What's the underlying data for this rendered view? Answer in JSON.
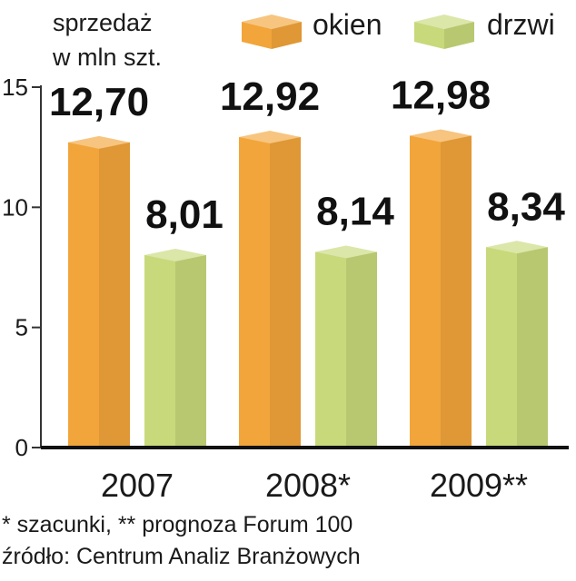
{
  "chart_data": {
    "type": "bar",
    "title": "",
    "ylabel_lines": [
      "sprzedaż",
      "w mln szt."
    ],
    "categories": [
      "2007",
      "2008*",
      "2009**"
    ],
    "series": [
      {
        "name": "okien",
        "values": [
          12.7,
          12.92,
          12.98
        ],
        "value_labels": [
          "12,70",
          "12,92",
          "12,98"
        ],
        "color": "#f2a53a"
      },
      {
        "name": "drzwi",
        "values": [
          8.01,
          8.14,
          8.34
        ],
        "value_labels": [
          "8,01",
          "8,14",
          "8,34"
        ],
        "color": "#c7d97a"
      }
    ],
    "ylim": [
      0,
      15
    ],
    "yticks": [
      0,
      5,
      10,
      15
    ],
    "legend_position": "top",
    "grid": false
  },
  "notes": {
    "footnote": "* szacunki, ** prognoza Forum 100",
    "source": "źródło: Centrum Analiz Branżowych"
  }
}
